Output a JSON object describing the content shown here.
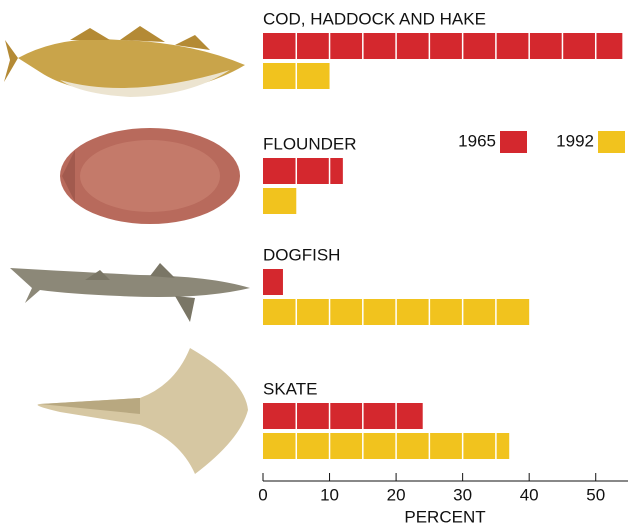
{
  "chart_data": {
    "type": "bar",
    "orientation": "horizontal",
    "categories": [
      "COD, HADDOCK AND HAKE",
      "FLOUNDER",
      "DOGFISH",
      "SKATE"
    ],
    "series": [
      {
        "name": "1965",
        "color": "#d4282e",
        "values": [
          54,
          12,
          3,
          24
        ]
      },
      {
        "name": "1992",
        "color": "#f1c31e",
        "values": [
          10,
          5,
          40,
          37
        ]
      }
    ],
    "xlim": [
      0,
      55
    ],
    "xticks": [
      0,
      10,
      20,
      30,
      40,
      50
    ],
    "xlabel": "PERCENT",
    "legend": "upper right"
  }
}
